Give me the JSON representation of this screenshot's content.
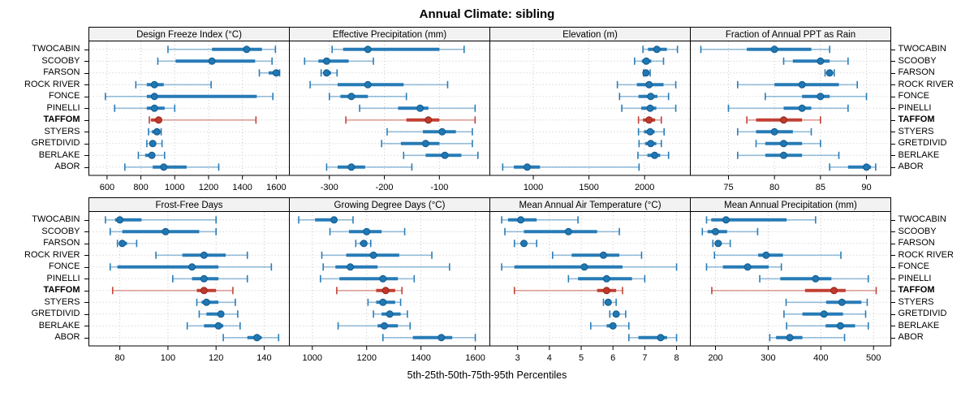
{
  "title": "Annual Climate: sibling",
  "caption": "5th-25th-50th-75th-95th Percentiles",
  "stations": [
    "TWOCABIN",
    "SCOOBY",
    "FARSON",
    "ROCK RIVER",
    "FONCE",
    "PINELLI",
    "TAFFOM",
    "STYERS",
    "GRETDIVID",
    "BERLAKE",
    "ABOR"
  ],
  "highlight_station": "TAFFOM",
  "colors": {
    "series": "#1f77b4",
    "series_edge": "#155a8a",
    "highlight": "#c0392b",
    "highlight_edge": "#8e2a20",
    "grid": "#c6c6c6",
    "panel_border": "#000000",
    "header_bg": "#f2f2f2",
    "plot_bg": "#ffffff"
  },
  "chart_data": {
    "type": "dot-interval trellis (2 rows x 4 panels)",
    "percentiles": [
      5,
      25,
      50,
      75,
      95
    ],
    "note": "values per station are [5th,25th,50th,75th,95th] percentiles",
    "panels": [
      {
        "title": "Design Freeze Index (°C)",
        "ticks": [
          600,
          800,
          1000,
          1200,
          1400,
          1600
        ],
        "xlim": [
          495,
          1675
        ],
        "series": [
          [
            960,
            1220,
            1425,
            1515,
            1595
          ],
          [
            900,
            1005,
            1220,
            1475,
            1575
          ],
          [
            1500,
            1555,
            1600,
            1610,
            1620
          ],
          [
            770,
            835,
            880,
            935,
            1215
          ],
          [
            590,
            835,
            880,
            1485,
            1580
          ],
          [
            645,
            835,
            880,
            940,
            1000
          ],
          [
            850,
            860,
            905,
            920,
            1480
          ],
          [
            845,
            865,
            895,
            905,
            920
          ],
          [
            835,
            850,
            870,
            890,
            925
          ],
          [
            785,
            825,
            865,
            880,
            940
          ],
          [
            705,
            870,
            935,
            1070,
            1260
          ]
        ]
      },
      {
        "title": "Effective Precipitation (mm)",
        "ticks": [
          -300,
          -200,
          -100
        ],
        "xlim": [
          -372,
          -9
        ],
        "series": [
          [
            -295,
            -275,
            -230,
            -100,
            -55
          ],
          [
            -345,
            -320,
            -305,
            -265,
            -220
          ],
          [
            -315,
            -310,
            -305,
            -297,
            -286
          ],
          [
            -335,
            -285,
            -230,
            -165,
            -85
          ],
          [
            -300,
            -280,
            -260,
            -230,
            -160
          ],
          [
            -245,
            -175,
            -135,
            -120,
            -35
          ],
          [
            -270,
            -160,
            -120,
            -100,
            -35
          ],
          [
            -195,
            -130,
            -95,
            -70,
            -40
          ],
          [
            -205,
            -170,
            -125,
            -100,
            -40
          ],
          [
            -165,
            -125,
            -90,
            -60,
            -30
          ],
          [
            -305,
            -285,
            -260,
            -235,
            -150
          ]
        ]
      },
      {
        "title": "Elevation (m)",
        "ticks": [
          1000,
          1500,
          2000
        ],
        "xlim": [
          613,
          2407
        ],
        "series": [
          [
            1985,
            2030,
            2110,
            2200,
            2295
          ],
          [
            1910,
            1975,
            2015,
            2060,
            2170
          ],
          [
            1990,
            2005,
            2012,
            2022,
            2050
          ],
          [
            1755,
            1930,
            2040,
            2170,
            2280
          ],
          [
            1775,
            1945,
            2055,
            2115,
            2215
          ],
          [
            1795,
            1970,
            2050,
            2105,
            2280
          ],
          [
            1945,
            1985,
            2040,
            2095,
            2150
          ],
          [
            1945,
            1995,
            2050,
            2090,
            2175
          ],
          [
            1950,
            2005,
            2055,
            2105,
            2150
          ],
          [
            1940,
            2025,
            2090,
            2140,
            2215
          ],
          [
            725,
            825,
            945,
            1060,
            1950
          ]
        ]
      },
      {
        "title": "Fraction of Annual PPT as Rain",
        "ticks": [
          75,
          80,
          85,
          90
        ],
        "xlim": [
          70.9,
          92.6
        ],
        "series": [
          [
            72,
            77,
            80,
            84,
            86
          ],
          [
            81,
            82,
            85,
            86,
            88
          ],
          [
            85.5,
            85.8,
            86,
            86.2,
            86.5
          ],
          [
            76,
            80,
            83,
            87,
            89
          ],
          [
            79,
            83,
            85,
            86,
            90
          ],
          [
            75,
            81,
            83,
            84,
            88
          ],
          [
            77,
            78,
            81,
            83,
            85
          ],
          [
            76,
            78,
            80,
            82,
            84
          ],
          [
            78,
            79,
            81,
            83,
            85
          ],
          [
            76,
            79,
            81,
            83,
            87
          ],
          [
            86,
            88,
            90,
            90.5,
            91
          ]
        ]
      },
      {
        "title": "Frost-Free Days",
        "ticks": [
          80,
          100,
          120,
          140
        ],
        "xlim": [
          67.3,
          150.3
        ],
        "series": [
          [
            74,
            78,
            80,
            89,
            120
          ],
          [
            76,
            81,
            99,
            113,
            120
          ],
          [
            79,
            80,
            81,
            83,
            87
          ],
          [
            95,
            106,
            115,
            124,
            133
          ],
          [
            76,
            79,
            110,
            121,
            143
          ],
          [
            102,
            110,
            115,
            121,
            133
          ],
          [
            77,
            112,
            115,
            120,
            127
          ],
          [
            112,
            114,
            116,
            121,
            128
          ],
          [
            113,
            116,
            122,
            123,
            129
          ],
          [
            108,
            115,
            121,
            123,
            130
          ],
          [
            123,
            133,
            137,
            139,
            146
          ]
        ]
      },
      {
        "title": "Growing Degree Days (°C)",
        "ticks": [
          1000,
          1200,
          1400,
          1600
        ],
        "xlim": [
          917,
          1652
        ],
        "series": [
          [
            950,
            1010,
            1080,
            1090,
            1150
          ],
          [
            1065,
            1135,
            1200,
            1255,
            1340
          ],
          [
            1160,
            1175,
            1190,
            1200,
            1215
          ],
          [
            1035,
            1125,
            1225,
            1320,
            1440
          ],
          [
            1040,
            1085,
            1140,
            1240,
            1505
          ],
          [
            1030,
            1100,
            1260,
            1315,
            1375
          ],
          [
            1090,
            1235,
            1270,
            1305,
            1330
          ],
          [
            1205,
            1235,
            1260,
            1305,
            1325
          ],
          [
            1225,
            1255,
            1285,
            1325,
            1350
          ],
          [
            1095,
            1240,
            1265,
            1315,
            1360
          ],
          [
            1260,
            1370,
            1475,
            1515,
            1600
          ]
        ]
      },
      {
        "title": "Mean Annual Air Temperature (°C)",
        "ticks": [
          3,
          4,
          5,
          6,
          7,
          8
        ],
        "xlim": [
          2.14,
          8.42
        ],
        "series": [
          [
            2.5,
            2.7,
            3.1,
            3.6,
            4.9
          ],
          [
            2.6,
            3.2,
            4.6,
            5.5,
            6.2
          ],
          [
            2.9,
            3.1,
            3.2,
            3.3,
            3.6
          ],
          [
            4.1,
            4.7,
            5.7,
            6.2,
            6.9
          ],
          [
            2.5,
            2.9,
            5.1,
            6.3,
            8.0
          ],
          [
            4.6,
            4.9,
            5.8,
            6.6,
            7.0
          ],
          [
            2.9,
            5.5,
            5.8,
            6.1,
            6.3
          ],
          [
            5.7,
            5.75,
            5.85,
            5.95,
            6.1
          ],
          [
            5.9,
            6.0,
            6.1,
            6.2,
            6.4
          ],
          [
            5.3,
            5.8,
            6.0,
            6.1,
            6.5
          ],
          [
            6.5,
            6.8,
            7.5,
            7.7,
            8.0
          ]
        ]
      },
      {
        "title": "Mean Annual Precipitation (mm)",
        "ticks": [
          200,
          300,
          400,
          500
        ],
        "xlim": [
          153,
          532
        ],
        "series": [
          [
            183,
            192,
            220,
            335,
            390
          ],
          [
            175,
            185,
            200,
            222,
            280
          ],
          [
            195,
            200,
            205,
            212,
            228
          ],
          [
            198,
            281,
            296,
            328,
            438
          ],
          [
            183,
            214,
            261,
            301,
            325
          ],
          [
            284,
            323,
            390,
            420,
            490
          ],
          [
            193,
            370,
            425,
            447,
            505
          ],
          [
            334,
            410,
            440,
            477,
            488
          ],
          [
            330,
            365,
            406,
            442,
            485
          ],
          [
            335,
            409,
            437,
            465,
            490
          ],
          [
            303,
            315,
            341,
            365,
            445
          ]
        ]
      }
    ]
  }
}
